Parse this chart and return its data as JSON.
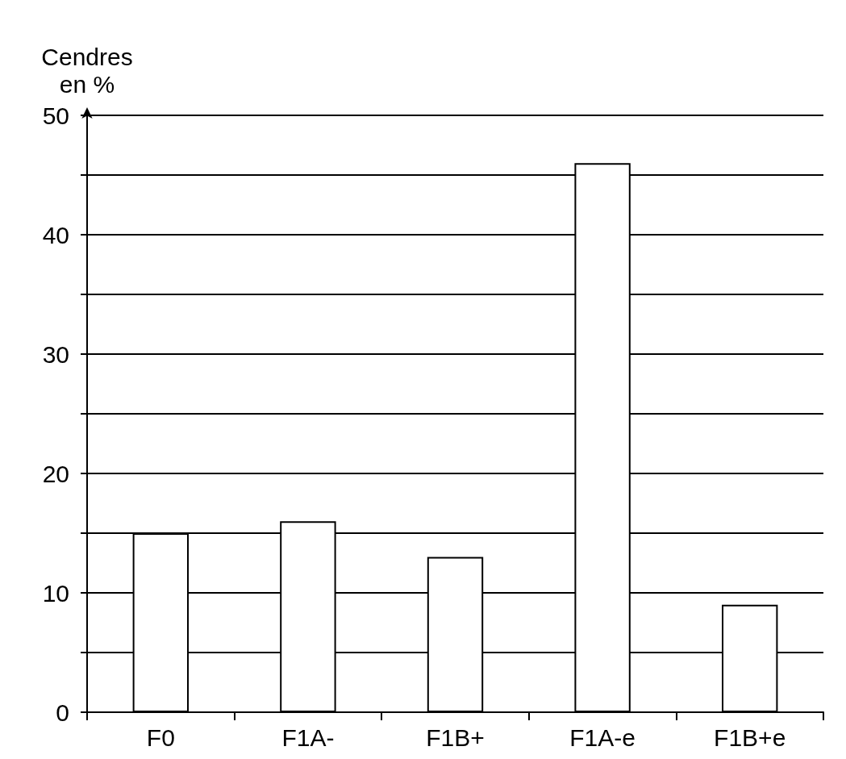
{
  "chart_data": {
    "type": "bar",
    "ylabel": "Cendres en %",
    "categories": [
      "F0",
      "F1A-",
      "F1B+",
      "F1A-e",
      "F1B+e"
    ],
    "values": [
      15,
      16,
      13,
      46,
      9
    ],
    "color": "#ffffff",
    "ylim": [
      0,
      50
    ],
    "yticks": [
      0,
      {
        "value": 5,
        "label": null
      },
      10,
      {
        "value": 15,
        "label": null
      },
      20,
      {
        "value": 25,
        "label": null
      },
      30,
      {
        "value": 35,
        "label": null
      },
      40,
      {
        "value": 45,
        "label": null
      },
      50
    ],
    "grid": "y"
  }
}
